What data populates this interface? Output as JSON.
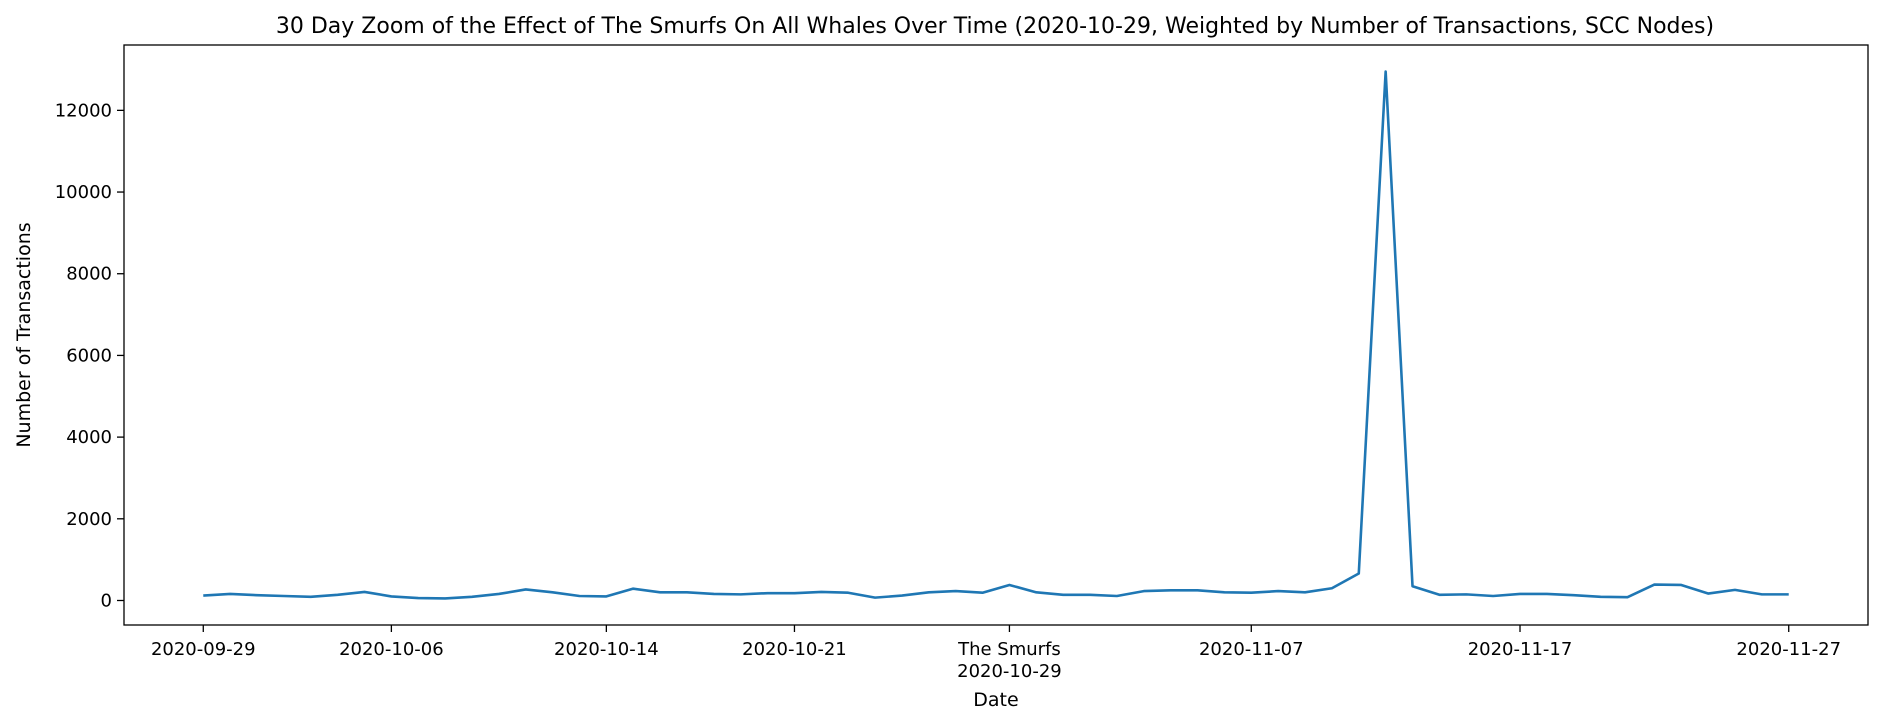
{
  "chart_data": {
    "type": "line",
    "title": "30 Day Zoom of the Effect of The Smurfs On All Whales Over Time (2020-10-29, Weighted by Number of Transactions, SCC Nodes)",
    "xlabel": "Date",
    "ylabel": "Number of Transactions",
    "x_ticks": [
      "2020-09-29",
      "2020-10-06",
      "2020-10-14",
      "2020-10-21",
      "2020-10-29",
      "2020-11-07",
      "2020-11-17",
      "2020-11-27"
    ],
    "event": {
      "label": "The Smurfs",
      "date": "2020-10-29"
    },
    "y_ticks": [
      0,
      2000,
      4000,
      6000,
      8000,
      10000,
      12000
    ],
    "ylim": [
      -600,
      13600
    ],
    "grid": false,
    "color": "#1f77b4",
    "series": [
      {
        "x": [
          "2020-09-29",
          "2020-09-30",
          "2020-10-01",
          "2020-10-02",
          "2020-10-03",
          "2020-10-04",
          "2020-10-05",
          "2020-10-06",
          "2020-10-07",
          "2020-10-08",
          "2020-10-09",
          "2020-10-10",
          "2020-10-11",
          "2020-10-12",
          "2020-10-13",
          "2020-10-14",
          "2020-10-15",
          "2020-10-16",
          "2020-10-17",
          "2020-10-18",
          "2020-10-19",
          "2020-10-20",
          "2020-10-21",
          "2020-10-22",
          "2020-10-23",
          "2020-10-24",
          "2020-10-25",
          "2020-10-26",
          "2020-10-27",
          "2020-10-28",
          "2020-10-29",
          "2020-10-30",
          "2020-10-31",
          "2020-11-01",
          "2020-11-02",
          "2020-11-03",
          "2020-11-04",
          "2020-11-05",
          "2020-11-06",
          "2020-11-07",
          "2020-11-08",
          "2020-11-09",
          "2020-11-10",
          "2020-11-11",
          "2020-11-12",
          "2020-11-13",
          "2020-11-14",
          "2020-11-15",
          "2020-11-16",
          "2020-11-17",
          "2020-11-18",
          "2020-11-19",
          "2020-11-20",
          "2020-11-21",
          "2020-11-22",
          "2020-11-23",
          "2020-11-24",
          "2020-11-25",
          "2020-11-26",
          "2020-11-27"
        ],
        "values": [
          120,
          160,
          130,
          110,
          90,
          140,
          210,
          100,
          60,
          50,
          90,
          160,
          270,
          200,
          110,
          100,
          290,
          200,
          200,
          160,
          150,
          180,
          180,
          210,
          190,
          70,
          120,
          200,
          230,
          190,
          380,
          200,
          140,
          140,
          110,
          230,
          250,
          250,
          200,
          190,
          230,
          200,
          300,
          660,
          12950,
          350,
          140,
          150,
          110,
          160,
          160,
          130,
          90,
          80,
          390,
          380,
          170,
          260,
          150,
          150
        ]
      }
    ]
  }
}
